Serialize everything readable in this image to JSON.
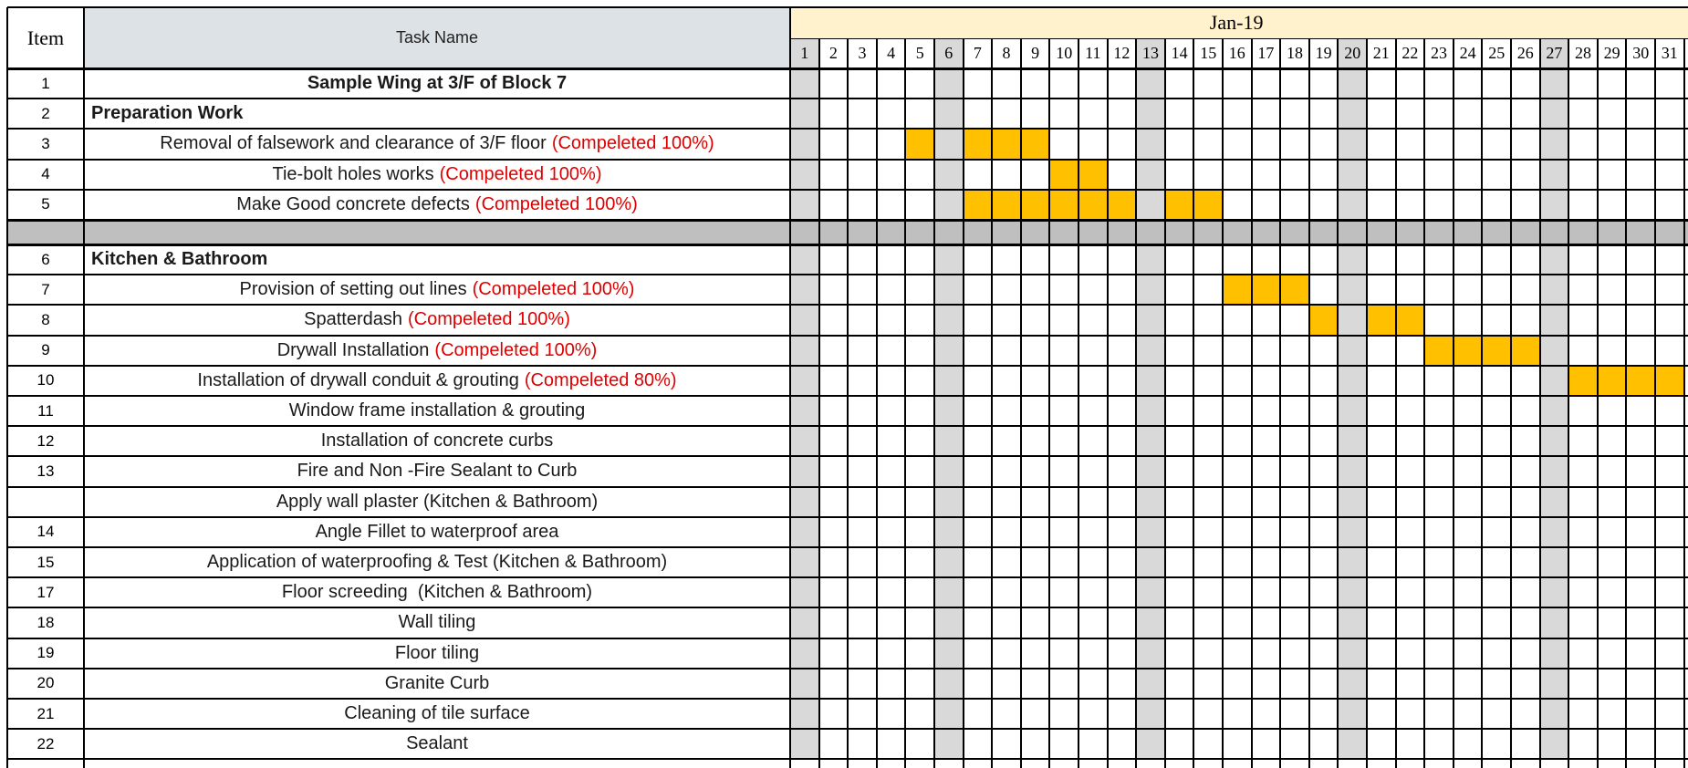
{
  "colors": {
    "header_task_bg": "#dde2e7",
    "month_bg": "#fff2cc",
    "weekend_bg": "#d9d9d9",
    "separator_bg": "#bfbfbf",
    "done_bar": "#ffc000",
    "status_text": "#e00000"
  },
  "header": {
    "item_label": "Item",
    "task_label": "Task Name",
    "month_label": "Jan-19",
    "days": [
      "1",
      "2",
      "3",
      "4",
      "5",
      "6",
      "7",
      "8",
      "9",
      "10",
      "11",
      "12",
      "13",
      "14",
      "15",
      "16",
      "17",
      "18",
      "19",
      "20",
      "21",
      "22",
      "23",
      "24",
      "25",
      "26",
      "27",
      "28",
      "29",
      "30",
      "31"
    ],
    "weekend_days": [
      1,
      6,
      13,
      20,
      27
    ]
  },
  "rows": [
    {
      "item": "1",
      "task": "Sample Wing at 3/F of Block 7",
      "style": "title",
      "status": "",
      "done_days": []
    },
    {
      "item": "2",
      "task": "Preparation Work",
      "style": "section",
      "status": "",
      "done_days": []
    },
    {
      "item": "3",
      "task": "Removal of falsework and clearance of 3/F floor",
      "style": "normal",
      "status": "(Compeleted 100%)",
      "done_days": [
        5,
        7,
        8,
        9
      ]
    },
    {
      "item": "4",
      "task": "Tie-bolt holes works",
      "style": "normal",
      "status": "(Compeleted 100%)",
      "done_days": [
        10,
        11
      ]
    },
    {
      "item": "5",
      "task": "Make Good concrete defects",
      "style": "normal",
      "status": "(Compeleted 100%)",
      "done_days": [
        7,
        8,
        9,
        10,
        11,
        12,
        14,
        15
      ]
    },
    {
      "item": "",
      "task": "",
      "style": "separator",
      "status": "",
      "done_days": []
    },
    {
      "item": "6",
      "task": "Kitchen & Bathroom",
      "style": "section",
      "status": "",
      "done_days": []
    },
    {
      "item": "7",
      "task": "Provision of setting out lines",
      "style": "normal",
      "status": "(Compeleted 100%)",
      "done_days": [
        16,
        17,
        18
      ]
    },
    {
      "item": "8",
      "task": "Spatterdash",
      "style": "normal",
      "status": "(Compeleted 100%)",
      "done_days": [
        19,
        21,
        22
      ]
    },
    {
      "item": "9",
      "task": "Drywall Installation",
      "style": "normal",
      "status": "(Compeleted 100%)",
      "done_days": [
        23,
        24,
        25,
        26
      ]
    },
    {
      "item": "10",
      "task": "Installation of drywall conduit & grouting",
      "style": "normal",
      "status": "(Compeleted 80%)",
      "done_days": [
        28,
        29,
        30,
        31
      ]
    },
    {
      "item": "11",
      "task": "Window frame installation & grouting",
      "style": "normal",
      "status": "",
      "done_days": []
    },
    {
      "item": "12",
      "task": "Installation of concrete curbs",
      "style": "normal",
      "status": "",
      "done_days": []
    },
    {
      "item": "13",
      "task": "Fire and Non -Fire Sealant to Curb",
      "style": "normal",
      "status": "",
      "done_days": []
    },
    {
      "item": "",
      "task": "Apply wall plaster (Kitchen & Bathroom)",
      "style": "normal",
      "status": "",
      "done_days": []
    },
    {
      "item": "14",
      "task": "Angle Fillet to waterproof area",
      "style": "normal",
      "status": "",
      "done_days": []
    },
    {
      "item": "15",
      "task": "Application of waterproofing & Test (Kitchen & Bathroom)",
      "style": "normal",
      "status": "",
      "done_days": []
    },
    {
      "item": "17",
      "task": "Floor screeding  (Kitchen & Bathroom)",
      "style": "normal",
      "status": "",
      "done_days": []
    },
    {
      "item": "18",
      "task": "Wall tiling",
      "style": "normal",
      "status": "",
      "done_days": []
    },
    {
      "item": "19",
      "task": "Floor tiling",
      "style": "normal",
      "status": "",
      "done_days": []
    },
    {
      "item": "20",
      "task": "Granite Curb",
      "style": "normal",
      "status": "",
      "done_days": []
    },
    {
      "item": "21",
      "task": "Cleaning of tile surface",
      "style": "normal",
      "status": "",
      "done_days": []
    },
    {
      "item": "22",
      "task": "Sealant",
      "style": "normal",
      "status": "",
      "done_days": []
    }
  ]
}
